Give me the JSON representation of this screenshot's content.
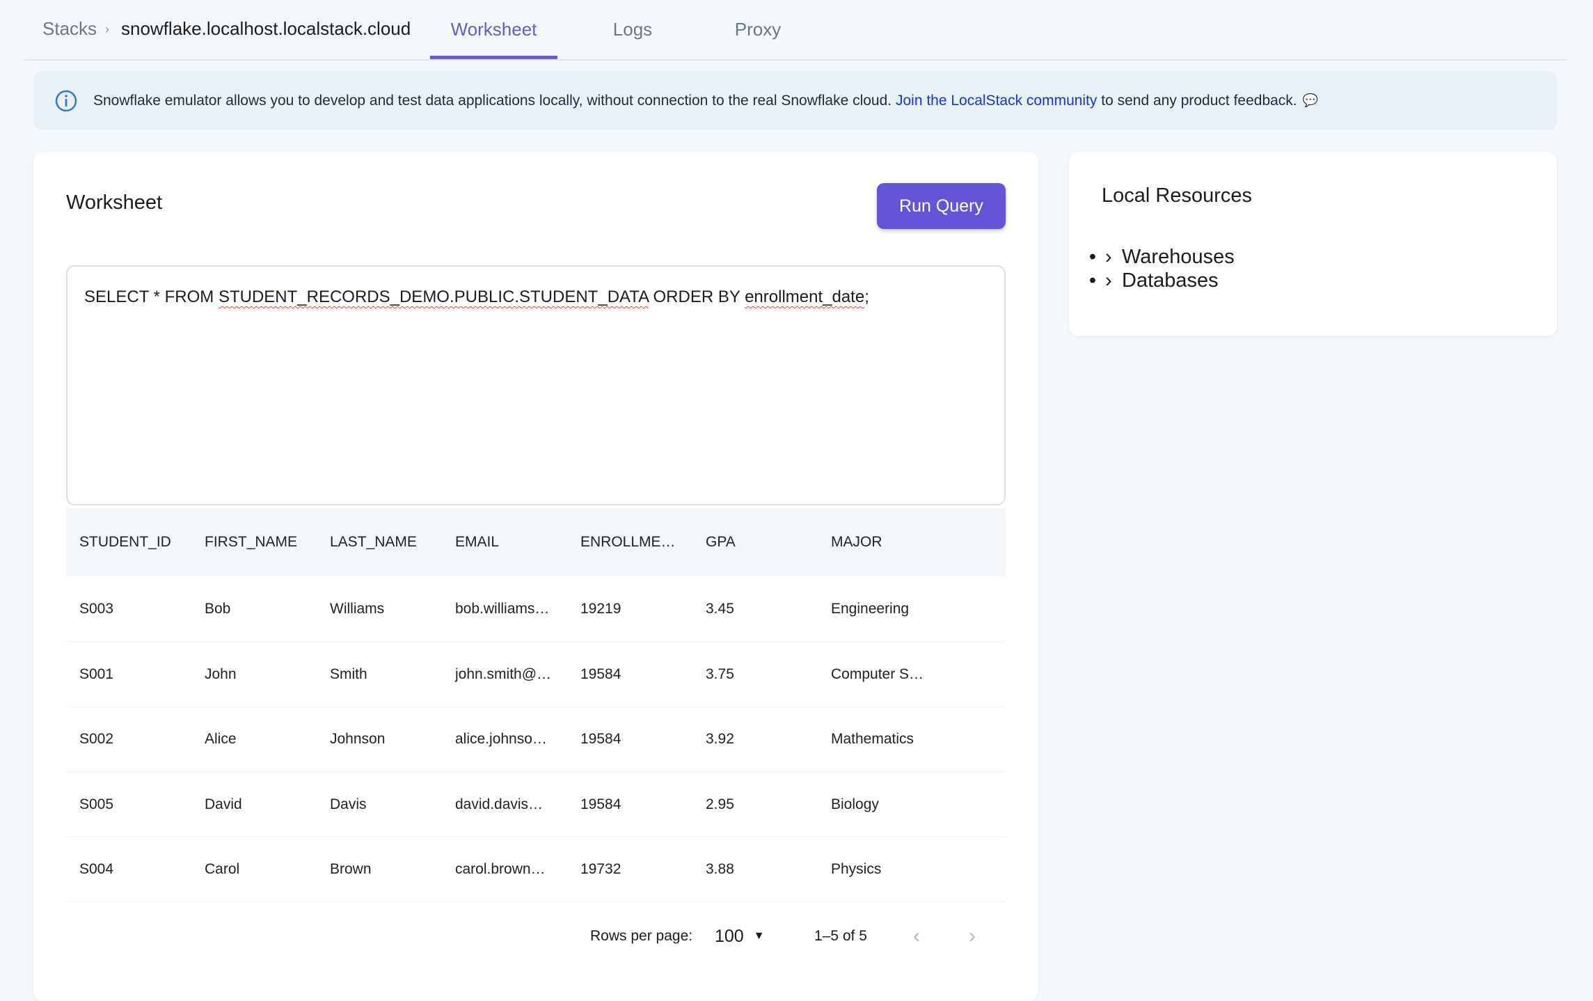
{
  "breadcrumb": {
    "root": "Stacks",
    "separator": "›",
    "current": "snowflake.localhost.localstack.cloud"
  },
  "tabs": [
    {
      "label": "Worksheet",
      "active": true
    },
    {
      "label": "Logs"
    },
    {
      "label": "Proxy"
    }
  ],
  "banner": {
    "text": "Snowflake emulator allows you to develop and test data applications locally, without connection to the real Snowflake cloud.",
    "link": "Join the LocalStack community",
    "suffix": "to send any product feedback.",
    "icon": "info-icon"
  },
  "worksheet": {
    "title": "Worksheet",
    "run_label": "Run Query",
    "query": {
      "p1": "SELECT * FROM ",
      "p2": "STUDENT_RECORDS_DEMO.PUBLIC.STUDENT_DATA",
      "p3": " ORDER BY ",
      "p4": "enrollment_date",
      ";": ";"
    },
    "columns": [
      "STUDENT_ID",
      "FIRST_NAME",
      "LAST_NAME",
      "EMAIL",
      "ENROLLME…",
      "GPA",
      "MAJOR"
    ],
    "rows": [
      [
        "S003",
        "Bob",
        "Williams",
        "bob.williams…",
        "19219",
        "3.45",
        "Engineering"
      ],
      [
        "S001",
        "John",
        "Smith",
        "john.smith@…",
        "19584",
        "3.75",
        "Computer S…"
      ],
      [
        "S002",
        "Alice",
        "Johnson",
        "alice.johnso…",
        "19584",
        "3.92",
        "Mathematics"
      ],
      [
        "S005",
        "David",
        "Davis",
        "david.davis…",
        "19584",
        "2.95",
        "Biology"
      ],
      [
        "S004",
        "Carol",
        "Brown",
        "carol.brown…",
        "19732",
        "3.88",
        "Physics"
      ]
    ],
    "pagination": {
      "rows_label": "Rows per page:",
      "rows_value": "100",
      "range": "1–5 of 5"
    }
  },
  "resources": {
    "title": "Local Resources",
    "items": [
      "Warehouses",
      "Databases"
    ]
  },
  "colors": {
    "accent": "#6454d8",
    "link": "#1a33d6"
  }
}
